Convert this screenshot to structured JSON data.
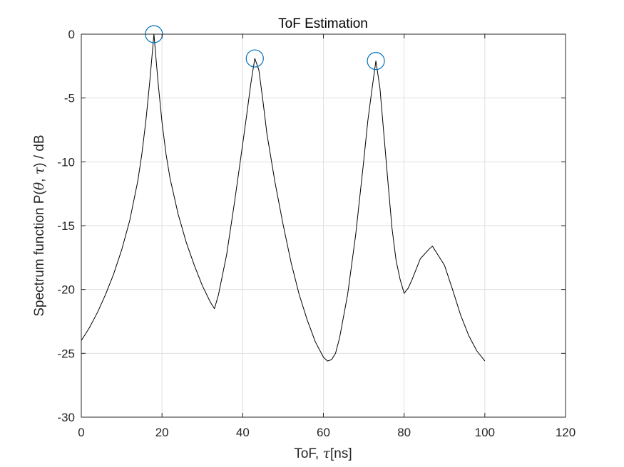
{
  "chart_data": {
    "type": "line",
    "title": "ToF Estimation",
    "xlabel": {
      "prefix": "ToF, ",
      "symbol": "τ",
      "suffix": "[ns]"
    },
    "ylabel": {
      "prefix": "Spectrum function P(",
      "symbol1": "θ",
      "middle": ", ",
      "symbol2": "τ",
      "suffix": ")  / dB"
    },
    "xlim": [
      0,
      120
    ],
    "ylim": [
      -30,
      0
    ],
    "xticks": [
      0,
      20,
      40,
      60,
      80,
      100,
      120
    ],
    "yticks": [
      0,
      -5,
      -10,
      -15,
      -20,
      -25,
      -30
    ],
    "grid": true,
    "box": true,
    "series": [
      {
        "color": "#000000",
        "x": [
          0,
          2,
          4,
          6,
          8,
          10,
          12,
          14,
          15,
          16,
          17,
          18,
          19,
          20,
          21,
          22,
          24,
          26,
          28,
          30,
          32,
          33,
          34,
          36,
          38,
          40,
          41,
          42,
          43,
          44,
          45,
          46,
          48,
          50,
          52,
          54,
          56,
          58,
          60,
          61,
          62,
          63,
          64,
          66,
          68,
          70,
          71,
          72,
          73,
          74,
          75,
          76,
          77,
          78,
          79,
          80,
          81,
          82,
          84,
          86,
          87,
          88,
          90,
          92,
          94,
          96,
          98,
          100
        ],
        "y": [
          -24.0,
          -23.0,
          -21.8,
          -20.4,
          -18.8,
          -16.9,
          -14.6,
          -11.5,
          -9.4,
          -6.8,
          -3.6,
          0.0,
          -3.7,
          -6.9,
          -9.4,
          -11.3,
          -14.1,
          -16.3,
          -18.1,
          -19.7,
          -21.0,
          -21.5,
          -20.4,
          -17.3,
          -13.1,
          -8.6,
          -6.3,
          -3.9,
          -1.9,
          -2.8,
          -5.2,
          -7.8,
          -11.6,
          -14.9,
          -17.9,
          -20.4,
          -22.4,
          -24.1,
          -25.3,
          -25.6,
          -25.5,
          -25.0,
          -23.8,
          -20.4,
          -15.7,
          -9.9,
          -6.8,
          -4.4,
          -2.1,
          -4.2,
          -7.9,
          -11.6,
          -15.2,
          -17.7,
          -19.2,
          -20.3,
          -19.9,
          -19.2,
          -17.6,
          -16.9,
          -16.6,
          -17.1,
          -18.1,
          -20.0,
          -22.0,
          -23.6,
          -24.8,
          -25.6
        ]
      }
    ],
    "peaks": {
      "color": "#0072BD",
      "marker": "circle",
      "x": [
        18,
        43,
        73
      ],
      "y": [
        0.0,
        -1.9,
        -2.1
      ]
    }
  }
}
